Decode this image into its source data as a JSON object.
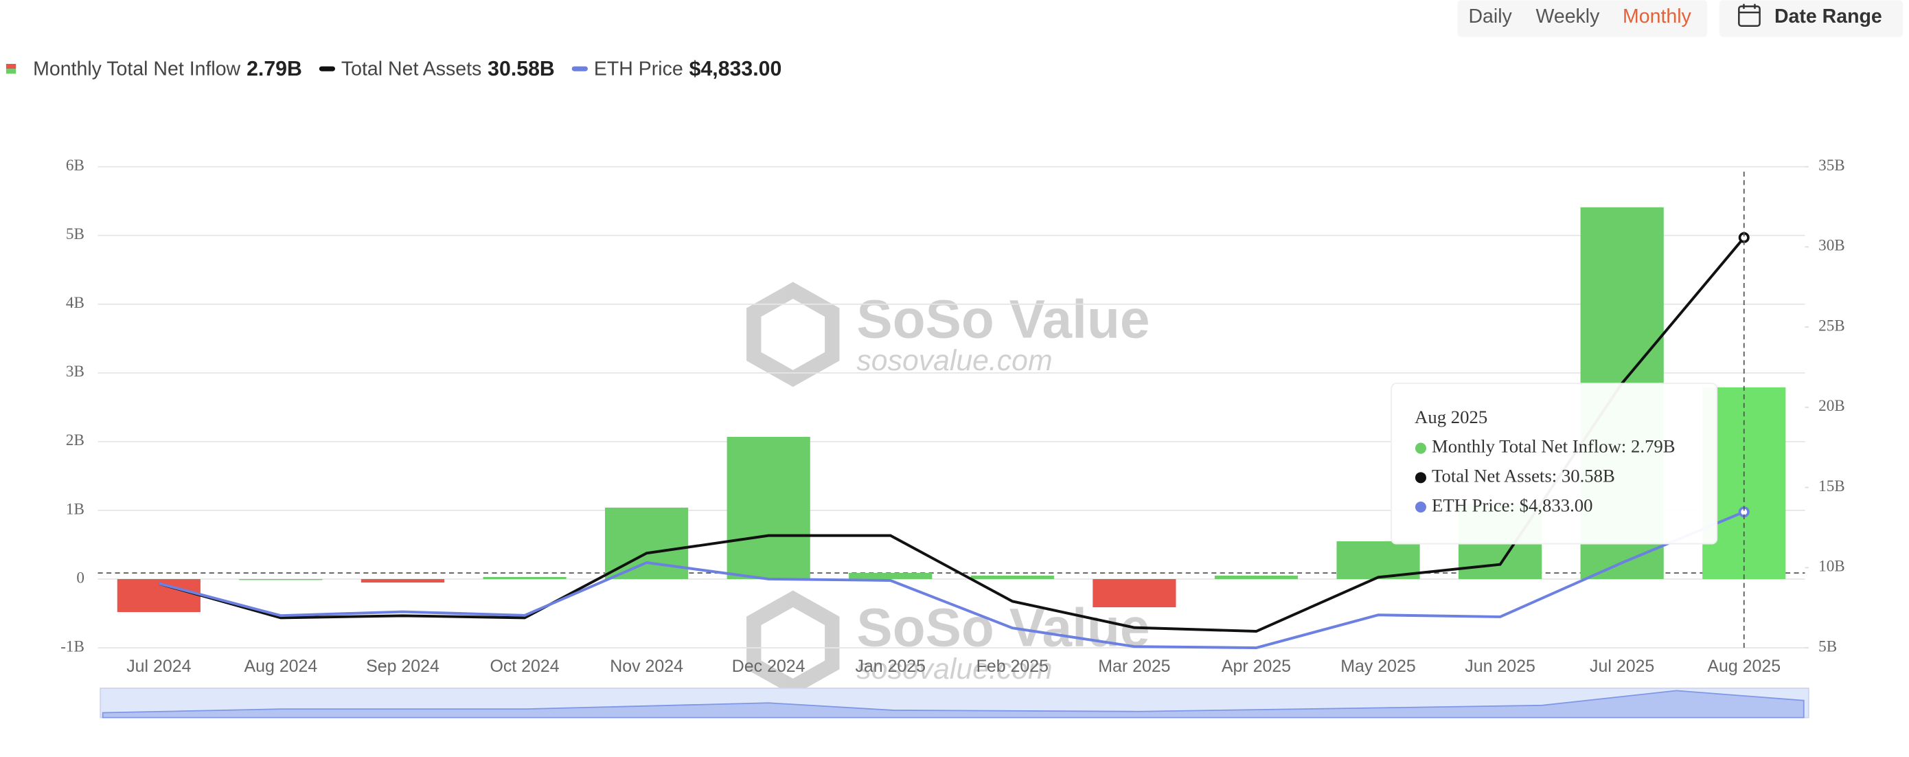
{
  "controls": {
    "periods": [
      "Daily",
      "Weekly",
      "Monthly"
    ],
    "active": 2,
    "date_range": "Date Range"
  },
  "legend_values": [
    "2.79B",
    "30.58B",
    "$4,833.00"
  ],
  "watermark": {
    "brand": "SoSo Value",
    "site": "sosovalue.com"
  },
  "tooltip": {
    "title": "Aug 2025",
    "items": [
      "Monthly Total Net Inflow: 2.79B",
      "Total Net Assets: 30.58B",
      "ETH Price: $4,833.00"
    ]
  },
  "chart_data": {
    "type": "combo",
    "categories": [
      "Jul 2024",
      "Aug 2024",
      "Sep 2024",
      "Oct 2024",
      "Nov 2024",
      "Dec 2024",
      "Jan 2025",
      "Feb 2025",
      "Mar 2025",
      "Apr 2025",
      "May 2025",
      "Jun 2025",
      "Jul 2025",
      "Aug 2025"
    ],
    "series": [
      {
        "name": "Monthly Total Net Inflow",
        "type": "bar",
        "color": "#6acd67",
        "negative_color": "#e9544a",
        "values": [
          -0.48,
          0,
          -0.05,
          0.03,
          1.04,
          2.07,
          0.09,
          0.05,
          -0.41,
          0.05,
          0.55,
          1.1,
          5.41,
          2.79
        ]
      },
      {
        "name": "Total Net Assets",
        "type": "line",
        "axis": "y2",
        "color": "#111111",
        "values": [
          9.0,
          6.87,
          7.0,
          6.87,
          10.9,
          12.0,
          12.0,
          7.9,
          6.26,
          6.03,
          9.4,
          10.2,
          21.5,
          30.58
        ]
      },
      {
        "name": "ETH Price",
        "type": "line",
        "axis": "hidden",
        "color": "#6b80e0",
        "values": [
          3232,
          2513,
          2600,
          2518,
          3700,
          3332,
          3300,
          2237,
          1822,
          1793,
          2528,
          2486,
          3697,
          4833
        ]
      }
    ],
    "ylim": [
      -1,
      6
    ],
    "yticks": [
      {
        "value": -1,
        "label": "-1B"
      },
      0,
      {
        "value": 1,
        "label": "1B"
      },
      {
        "value": 2,
        "label": "2B"
      },
      {
        "value": 3,
        "label": "3B"
      },
      {
        "value": 4,
        "label": "4B"
      },
      {
        "value": 5,
        "label": "5B"
      },
      {
        "value": 6,
        "label": "6B"
      }
    ],
    "y2lim": [
      5,
      35
    ],
    "y2ticks": [
      {
        "value": 5,
        "label": "5B"
      },
      {
        "value": 10,
        "label": "10B"
      },
      {
        "value": 15,
        "label": "15B"
      },
      {
        "value": 20,
        "label": "20B"
      },
      {
        "value": 25,
        "label": "25B"
      },
      {
        "value": 30,
        "label": "30B"
      },
      {
        "value": 35,
        "label": "35B"
      }
    ],
    "grid": true
  }
}
